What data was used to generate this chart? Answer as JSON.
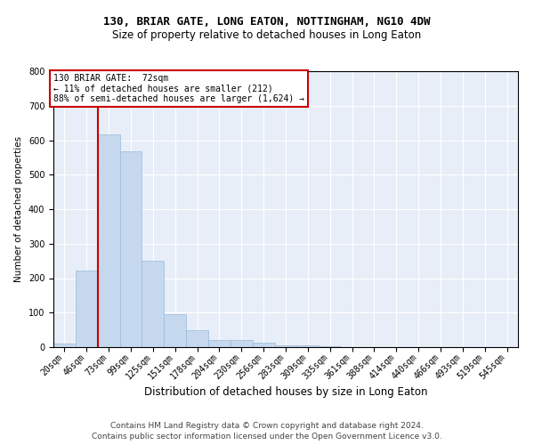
{
  "title": "130, BRIAR GATE, LONG EATON, NOTTINGHAM, NG10 4DW",
  "subtitle": "Size of property relative to detached houses in Long Eaton",
  "xlabel": "Distribution of detached houses by size in Long Eaton",
  "ylabel": "Number of detached properties",
  "bar_color": "#c5d8ee",
  "bar_edge_color": "#9bbbd9",
  "background_color": "#ffffff",
  "plot_bg_color": "#e8eef8",
  "grid_color": "#ffffff",
  "categories": [
    "20sqm",
    "46sqm",
    "73sqm",
    "99sqm",
    "125sqm",
    "151sqm",
    "178sqm",
    "204sqm",
    "230sqm",
    "256sqm",
    "283sqm",
    "309sqm",
    "335sqm",
    "361sqm",
    "388sqm",
    "414sqm",
    "440sqm",
    "466sqm",
    "493sqm",
    "519sqm",
    "545sqm"
  ],
  "values": [
    10,
    222,
    617,
    567,
    250,
    95,
    48,
    20,
    20,
    12,
    5,
    5,
    2,
    1,
    0,
    0,
    0,
    0,
    0,
    0,
    0
  ],
  "ylim": [
    0,
    800
  ],
  "yticks": [
    0,
    100,
    200,
    300,
    400,
    500,
    600,
    700,
    800
  ],
  "vline_x_index": 1.5,
  "marker_label": "130 BRIAR GATE:  72sqm",
  "annotation_line1": "← 11% of detached houses are smaller (212)",
  "annotation_line2": "88% of semi-detached houses are larger (1,624) →",
  "annotation_box_color": "#ffffff",
  "annotation_box_edge": "#cc0000",
  "vline_color": "#cc0000",
  "footer_line1": "Contains HM Land Registry data © Crown copyright and database right 2024.",
  "footer_line2": "Contains public sector information licensed under the Open Government Licence v3.0.",
  "title_fontsize": 9,
  "subtitle_fontsize": 8.5,
  "xlabel_fontsize": 8.5,
  "ylabel_fontsize": 7.5,
  "tick_fontsize": 7,
  "annotation_fontsize": 7,
  "footer_fontsize": 6.5
}
